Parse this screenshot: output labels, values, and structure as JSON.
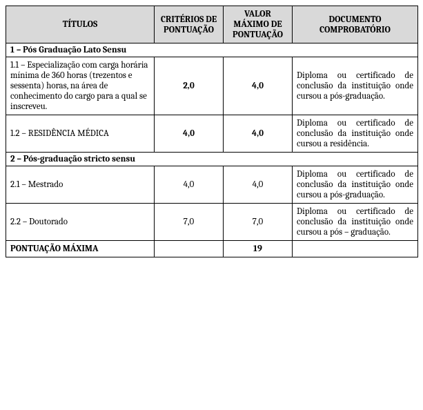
{
  "headers": {
    "col1": "TÍTULOS",
    "col2": "CRITÉRIOS DE PONTUAÇÃO",
    "col3": "VALOR MÁXIMO DE PONTUAÇÃO",
    "col4": "DOCUMENTO COMPROBATÓRIO"
  },
  "section1": {
    "title": "1 – Pós Graduação Lato Sensu",
    "rows": [
      {
        "titulo": "1.1 – Especialização com carga horária mínima de 360 horas (trezentos e sessenta) horas, na área de conhecimento do cargo para a qual se inscreveu.",
        "criterio": "2,0",
        "valor": "4,0",
        "doc": "Diploma ou certificado de conclusão da instituição onde cursou a pós-graduação.",
        "bold_vals": true
      },
      {
        "titulo": "1.2 – RESIDÊNCIA MÉDICA",
        "criterio": "4,0",
        "valor": "4,0",
        "doc": "Diploma ou certificado de conclusão da instituição onde cursou a residência.",
        "bold_vals": true
      }
    ]
  },
  "section2": {
    "title": "2 – Pós-graduação stricto sensu",
    "rows": [
      {
        "titulo": "2.1 – Mestrado",
        "criterio": "4,0",
        "valor": "4,0",
        "doc": "Diploma ou certificado de conclusão da instituição onde cursou a pós-graduação.",
        "bold_vals": false
      },
      {
        "titulo": "2.2 – Doutorado",
        "criterio": "7,0",
        "valor": "7,0",
        "doc": "Diploma ou certificado de conclusão da instituição onde cursou a pós – graduação.",
        "bold_vals": false
      }
    ]
  },
  "footer": {
    "label": "PONTUAÇÃO MÁXIMA",
    "total": "19"
  }
}
